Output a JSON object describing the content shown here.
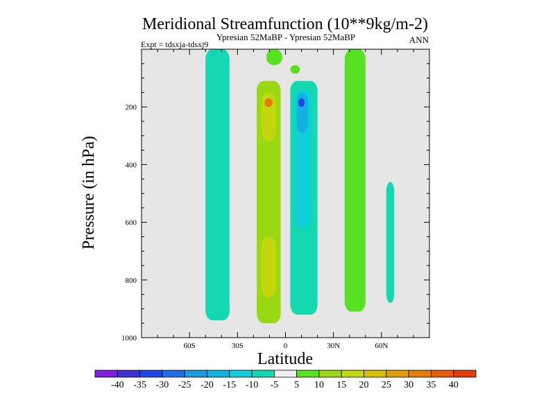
{
  "chart_data": {
    "type": "heatmap",
    "title": "Meridional Streamfunction (10**9kg/m-2)",
    "subtitle": "Ypresian  52MaBP - Ypresian  52MaBP",
    "season": "ANN",
    "expt_label": "Expt = tdsxja-tdsxj9",
    "xlabel": "Latitude",
    "ylabel": "Pressure (in hPa)",
    "xlim": [
      -90,
      90
    ],
    "ylim": [
      0,
      1000
    ],
    "y_inverted": true,
    "x_ticks": [
      {
        "value": -60,
        "label": "60S"
      },
      {
        "value": -30,
        "label": "30S"
      },
      {
        "value": 0,
        "label": "0"
      },
      {
        "value": 30,
        "label": "30N"
      },
      {
        "value": 60,
        "label": "60N"
      }
    ],
    "y_ticks": [
      {
        "value": 200,
        "label": "200"
      },
      {
        "value": 400,
        "label": "400"
      },
      {
        "value": 600,
        "label": "600"
      },
      {
        "value": 800,
        "label": "800"
      },
      {
        "value": 1000,
        "label": "1000"
      }
    ],
    "background_color": "#e6e6e6",
    "colorbar": {
      "labels": [
        "-40",
        "-35",
        "-30",
        "-25",
        "-20",
        "-15",
        "-10",
        "-5",
        "5",
        "10",
        "15",
        "20",
        "25",
        "30",
        "35",
        "40"
      ],
      "colors": [
        "#7b1fe0",
        "#3e2fd8",
        "#1f46e6",
        "#1f6fe6",
        "#1c98e0",
        "#12b2e0",
        "#10cfd8",
        "#14d8b0",
        "#f0f0f0",
        "#58e022",
        "#9ad814",
        "#c2d80c",
        "#d8c00a",
        "#e0a00a",
        "#e47c0c",
        "#e85a0c",
        "#e03c0c"
      ]
    },
    "cells": [
      {
        "id": "green-top-left-a",
        "color": "#58e022",
        "lat": [
          -45,
          -39
        ],
        "p": [
          0,
          220
        ]
      },
      {
        "id": "green-top-mid",
        "color": "#58e022",
        "lat": [
          -12,
          -2
        ],
        "p": [
          0,
          55
        ]
      },
      {
        "id": "green-top-center",
        "color": "#58e022",
        "lat": [
          3,
          9
        ],
        "p": [
          55,
          85
        ]
      },
      {
        "id": "green-top-right",
        "color": "#58e022",
        "lat": [
          42,
          48
        ],
        "p": [
          0,
          190
        ]
      },
      {
        "id": "cell-sh-left",
        "color": "#14d8b0",
        "lat": [
          -50,
          -35
        ],
        "p": [
          0,
          940
        ],
        "value": -7
      },
      {
        "id": "cell-sh-main",
        "color": "#9ad814",
        "lat": [
          -18,
          -3
        ],
        "p": [
          110,
          950
        ],
        "value": 12
      },
      {
        "id": "cell-sh-core-upper",
        "color": "#c2d80c",
        "lat": [
          -15,
          -6
        ],
        "p": [
          150,
          320
        ],
        "value": 20
      },
      {
        "id": "cell-sh-core-lower",
        "color": "#c2d80c",
        "lat": [
          -15,
          -6
        ],
        "p": [
          650,
          860
        ],
        "value": 20
      },
      {
        "id": "cell-sh-max",
        "color": "#e47c0c",
        "lat": [
          -13,
          -8
        ],
        "p": [
          170,
          200
        ],
        "value": 33
      },
      {
        "id": "cell-nh-main",
        "color": "#14d8b0",
        "lat": [
          3,
          20
        ],
        "p": [
          110,
          920
        ],
        "value": -8
      },
      {
        "id": "cell-nh-core",
        "color": "#10cfd8",
        "lat": [
          6,
          16
        ],
        "p": [
          140,
          620
        ],
        "value": -13
      },
      {
        "id": "cell-nh-inner",
        "color": "#12b2e0",
        "lat": [
          7,
          14
        ],
        "p": [
          150,
          290
        ],
        "value": -18
      },
      {
        "id": "cell-nh-max",
        "color": "#1f46e6",
        "lat": [
          8,
          12
        ],
        "p": [
          170,
          200
        ],
        "value": -32
      },
      {
        "id": "cell-nh-right",
        "color": "#58e022",
        "lat": [
          37,
          50
        ],
        "p": [
          0,
          910
        ],
        "value": 7
      },
      {
        "id": "cell-nh-far",
        "color": "#14d8b0",
        "lat": [
          63,
          68
        ],
        "p": [
          460,
          880
        ],
        "value": -6
      }
    ]
  }
}
